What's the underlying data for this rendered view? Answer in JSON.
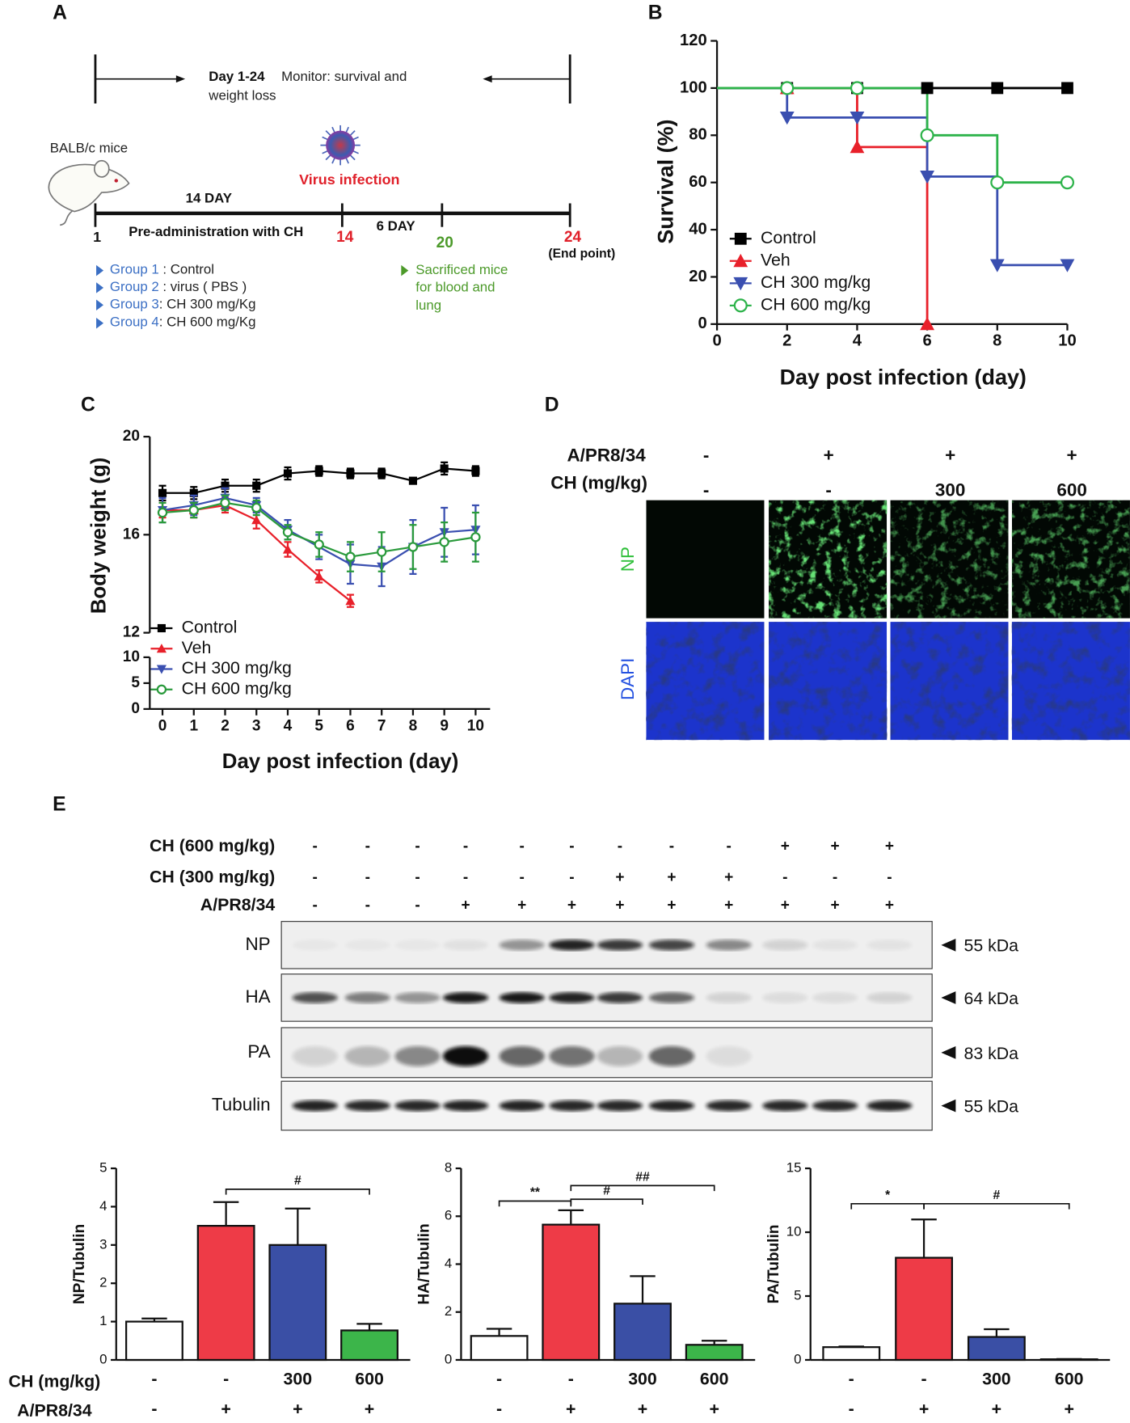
{
  "panel_a": {
    "label": "A",
    "monitor_days": "Day 1-24",
    "monitor_text": "Monitor: survival and",
    "monitor_text2": "weight loss",
    "mice": "BALB/c mice",
    "infection": "Virus infection",
    "pre_days": "14 DAY",
    "pre_text": "Pre-administration with CH",
    "post_days": "6 DAY",
    "day_start": "1",
    "day_infection": "14",
    "day_sacrifice": "20",
    "day_end": "24",
    "end_label": "(End point)",
    "groups": [
      {
        "name": "Group 1",
        "text": " : Control"
      },
      {
        "name": "Group 2",
        "text": " : virus ( PBS )"
      },
      {
        "name": "Group 3",
        "text": ": CH 300 mg/Kg"
      },
      {
        "name": "Group 4",
        "text": ": CH 600 mg/Kg"
      }
    ],
    "sacrifice_lines": [
      "Sacrificed mice",
      "for blood and",
      "lung"
    ]
  },
  "panel_d": {
    "label": "D",
    "rows": [
      {
        "name": "A/PR8/34",
        "signs": [
          "-",
          "+",
          "+",
          "+"
        ]
      },
      {
        "name": "CH (mg/kg)",
        "signs": [
          "-",
          "-",
          "300",
          "600"
        ]
      }
    ],
    "channels": [
      "NP",
      "DAPI"
    ]
  },
  "panel_e": {
    "label": "E",
    "treatments": [
      {
        "name": "CH (600 mg/kg)",
        "signs": [
          "-",
          "-",
          "-",
          "-",
          "-",
          "-",
          "-",
          "-",
          "-",
          "+",
          "+",
          "+"
        ]
      },
      {
        "name": "CH (300 mg/kg)",
        "signs": [
          "-",
          "-",
          "-",
          "-",
          "-",
          "-",
          "+",
          "+",
          "+",
          "-",
          "-",
          "-"
        ]
      },
      {
        "name": "A/PR8/34",
        "signs": [
          "-",
          "-",
          "-",
          "+",
          "+",
          "+",
          "+",
          "+",
          "+",
          "+",
          "+",
          "+"
        ]
      }
    ],
    "blots": [
      {
        "name": "NP",
        "size": "55 kDa"
      },
      {
        "name": "HA",
        "size": "64 kDa"
      },
      {
        "name": "PA",
        "size": "83 kDa"
      },
      {
        "name": "Tubulin",
        "size": "55 kDa"
      }
    ],
    "bar_rows": [
      {
        "name": "CH (mg/kg)",
        "signs": [
          "-",
          "-",
          "300",
          "600"
        ]
      },
      {
        "name": "A/PR8/34",
        "signs": [
          "-",
          "+",
          "+",
          "+"
        ]
      }
    ]
  },
  "chart_data": [
    {
      "panel": "B",
      "type": "step",
      "ylabel": "Survival (%)",
      "xlabel": "Day post infection (day)",
      "x": [
        0,
        2,
        4,
        6,
        8,
        10
      ],
      "xlim": [
        0,
        10
      ],
      "xticks": [
        0,
        2,
        4,
        6,
        8,
        10
      ],
      "ylim": [
        0,
        120
      ],
      "yticks": [
        0,
        20,
        40,
        60,
        80,
        100,
        120
      ],
      "legend": "lower left",
      "series": [
        {
          "name": "Control",
          "color": "#000000",
          "marker": "square",
          "values": [
            100,
            100,
            100,
            100,
            100,
            100
          ]
        },
        {
          "name": "Veh",
          "color": "#e8202a",
          "marker": "triangle-up",
          "values": [
            100,
            100,
            75,
            0,
            null,
            null
          ]
        },
        {
          "name": "CH 300 mg/kg",
          "color": "#3a4fb0",
          "marker": "triangle-down",
          "values": [
            100,
            87.5,
            87.5,
            62.5,
            25,
            25
          ]
        },
        {
          "name": "CH 600 mg/kg",
          "color": "#2db34a",
          "marker": "circle-open",
          "values": [
            100,
            100,
            100,
            80,
            60,
            60
          ]
        }
      ]
    },
    {
      "panel": "C",
      "type": "line",
      "ylabel": "Body weight (g)",
      "xlabel": "Day post infection (day)",
      "x": [
        0,
        1,
        2,
        3,
        4,
        5,
        6,
        7,
        8,
        9,
        10
      ],
      "xlim": [
        0,
        10
      ],
      "xticks": [
        0,
        1,
        2,
        3,
        4,
        5,
        6,
        7,
        8,
        9,
        10
      ],
      "ylim": [
        0,
        20
      ],
      "ybreak": [
        10,
        12
      ],
      "yticks": [
        0,
        5,
        10,
        12,
        16,
        20
      ],
      "legend": "lower left",
      "series": [
        {
          "name": "Control",
          "color": "#000000",
          "marker": "square",
          "values": [
            17.7,
            17.7,
            18.0,
            18.0,
            18.5,
            18.6,
            18.5,
            18.5,
            18.2,
            18.7,
            18.6
          ],
          "errors": [
            0.3,
            0.25,
            0.25,
            0.25,
            0.25,
            0.2,
            0.2,
            0.2,
            0.1,
            0.25,
            0.2
          ]
        },
        {
          "name": "Veh",
          "color": "#e8202a",
          "marker": "triangle-up",
          "values": [
            17.0,
            17.0,
            17.2,
            16.6,
            15.4,
            14.3,
            13.3,
            null,
            null,
            null,
            null
          ],
          "errors": [
            0.3,
            0.3,
            0.3,
            0.35,
            0.3,
            0.25,
            0.25,
            null,
            null,
            null,
            null
          ]
        },
        {
          "name": "CH 300 mg/kg",
          "color": "#3a4fb0",
          "marker": "triangle-down",
          "values": [
            17.0,
            17.2,
            17.5,
            17.2,
            16.2,
            15.5,
            14.8,
            14.7,
            15.5,
            16.1,
            16.2
          ],
          "errors": [
            0.5,
            0.4,
            0.4,
            0.3,
            0.4,
            0.5,
            0.8,
            0.8,
            1.1,
            1.0,
            1.0
          ]
        },
        {
          "name": "CH 600 mg/kg",
          "color": "#2a9a3c",
          "marker": "circle-open",
          "values": [
            16.9,
            17.0,
            17.3,
            17.1,
            16.1,
            15.6,
            15.1,
            15.3,
            15.5,
            15.7,
            15.9
          ],
          "errors": [
            0.4,
            0.3,
            0.3,
            0.3,
            0.3,
            0.5,
            0.6,
            0.8,
            0.9,
            0.8,
            1.0
          ]
        }
      ]
    },
    {
      "type": "bar",
      "ylabel": "NP/Tubulin",
      "values": [
        1.0,
        3.5,
        3.0,
        0.77
      ],
      "errors": [
        0.08,
        0.62,
        0.95,
        0.17
      ],
      "colors": [
        "#ffffff",
        "#ee3b47",
        "#3a4fa5",
        "#3cb54a"
      ],
      "ylim": [
        0,
        5
      ],
      "yticks": [
        0,
        1,
        2,
        3,
        4,
        5
      ],
      "significance": [
        "#"
      ]
    },
    {
      "type": "bar",
      "ylabel": "HA/Tubulin",
      "values": [
        1.0,
        5.65,
        2.35,
        0.63
      ],
      "errors": [
        0.3,
        0.6,
        1.15,
        0.17
      ],
      "colors": [
        "#ffffff",
        "#ee3b47",
        "#3a4fa5",
        "#3cb54a"
      ],
      "ylim": [
        0,
        8
      ],
      "yticks": [
        0,
        2,
        4,
        6,
        8
      ],
      "significance": [
        "**",
        "#",
        "##"
      ]
    },
    {
      "type": "bar",
      "ylabel": "PA/Tubulin",
      "values": [
        1.0,
        8.0,
        1.8,
        0.05
      ],
      "errors": [
        0.05,
        3.0,
        0.6,
        0.02
      ],
      "colors": [
        "#ffffff",
        "#ee3b47",
        "#3a4fa5",
        "#3cb54a"
      ],
      "ylim": [
        0,
        15
      ],
      "yticks": [
        0,
        5,
        10,
        15
      ],
      "significance": [
        "*",
        "#"
      ]
    }
  ]
}
